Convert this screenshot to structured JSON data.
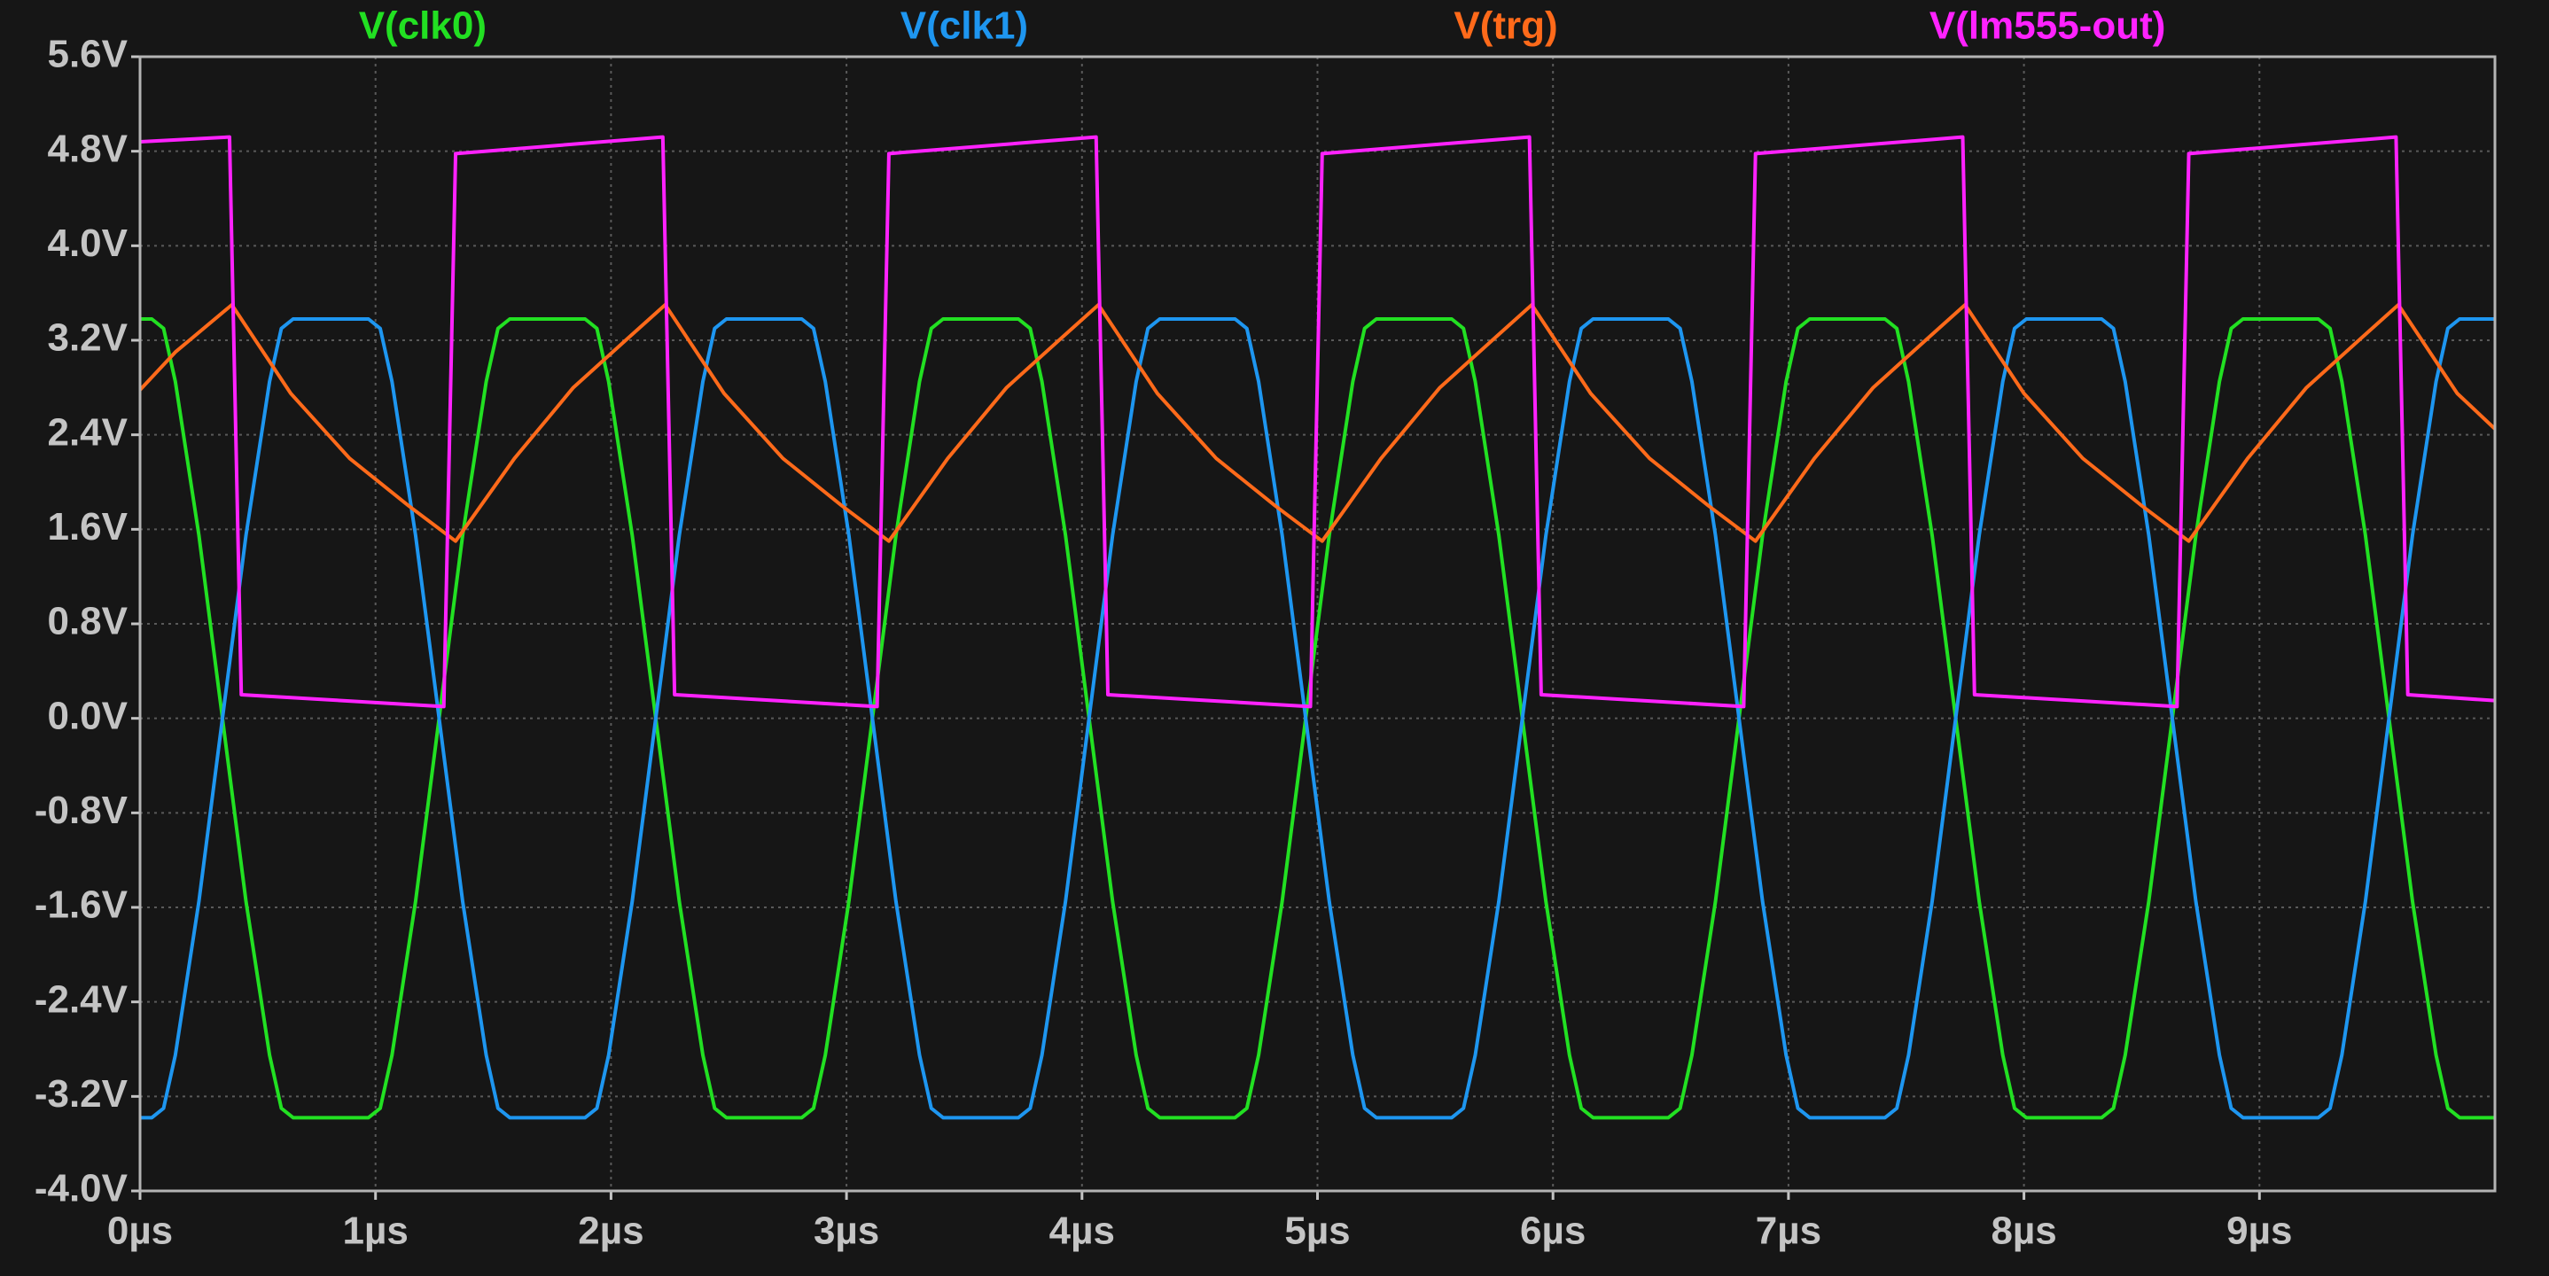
{
  "chart_data": {
    "type": "line",
    "xlim": [
      0,
      10
    ],
    "xticks": [
      {
        "value": 0,
        "label": "0µs"
      },
      {
        "value": 1,
        "label": "1µs"
      },
      {
        "value": 2,
        "label": "2µs"
      },
      {
        "value": 3,
        "label": "3µs"
      },
      {
        "value": 4,
        "label": "4µs"
      },
      {
        "value": 5,
        "label": "5µs"
      },
      {
        "value": 6,
        "label": "6µs"
      },
      {
        "value": 7,
        "label": "7µs"
      },
      {
        "value": 8,
        "label": "8µs"
      },
      {
        "value": 9,
        "label": "9µs"
      }
    ],
    "ylim": [
      -4,
      5.6
    ],
    "yticks": [
      {
        "value": -4,
        "label": "-4.0V"
      },
      {
        "value": -3.2,
        "label": "-3.2V"
      },
      {
        "value": -2.4,
        "label": "-2.4V"
      },
      {
        "value": -1.6,
        "label": "-1.6V"
      },
      {
        "value": -0.8,
        "label": "-0.8V"
      },
      {
        "value": 0,
        "label": "0.0V"
      },
      {
        "value": 0.8,
        "label": "0.8V"
      },
      {
        "value": 1.6,
        "label": "1.6V"
      },
      {
        "value": 2.4,
        "label": "2.4V"
      },
      {
        "value": 3.2,
        "label": "3.2V"
      },
      {
        "value": 4,
        "label": "4.0V"
      },
      {
        "value": 4.8,
        "label": "4.8V"
      },
      {
        "value": 5.6,
        "label": "5.6V"
      }
    ],
    "grid": true,
    "series": [
      {
        "name": "V(clk0)",
        "color": "#22e022",
        "x": [
          0,
          0.05,
          0.1,
          0.15,
          0.25,
          0.35,
          0.45,
          0.55,
          0.6,
          0.65,
          0.97,
          1.02,
          1.07,
          1.17,
          1.27,
          1.37,
          1.47,
          1.52,
          1.57,
          1.89,
          1.94,
          1.99,
          2.09,
          2.19,
          2.29,
          2.39,
          2.44,
          2.49,
          2.81,
          2.86,
          2.91,
          3.01,
          3.11,
          3.21,
          3.31,
          3.36,
          3.41,
          3.73,
          3.78,
          3.83,
          3.93,
          4.03,
          4.13,
          4.23,
          4.28,
          4.33,
          4.65,
          4.7,
          4.75,
          4.85,
          4.95,
          5.05,
          5.15,
          5.2,
          5.25,
          5.57,
          5.62,
          5.67,
          5.77,
          5.87,
          5.97,
          6.07,
          6.12,
          6.17,
          6.49,
          6.54,
          6.59,
          6.69,
          6.79,
          6.89,
          6.99,
          7.04,
          7.09,
          7.41,
          7.46,
          7.51,
          7.61,
          7.71,
          7.81,
          7.91,
          7.96,
          8.01,
          8.33,
          8.38,
          8.43,
          8.53,
          8.63,
          8.73,
          8.83,
          8.88,
          8.93,
          9.25,
          9.3,
          9.35,
          9.45,
          9.55,
          9.65,
          9.75,
          9.8,
          9.85,
          10
        ],
        "values": [
          3.38,
          3.38,
          3.3,
          2.85,
          1.55,
          0,
          -1.55,
          -2.85,
          -3.3,
          -3.38,
          -3.38,
          -3.3,
          -2.85,
          -1.55,
          0,
          1.55,
          2.85,
          3.3,
          3.38,
          3.38,
          3.3,
          2.85,
          1.55,
          0,
          -1.55,
          -2.85,
          -3.3,
          -3.38,
          -3.38,
          -3.3,
          -2.85,
          -1.55,
          0,
          1.55,
          2.85,
          3.3,
          3.38,
          3.38,
          3.3,
          2.85,
          1.55,
          0,
          -1.55,
          -2.85,
          -3.3,
          -3.38,
          -3.38,
          -3.3,
          -2.85,
          -1.55,
          0,
          1.55,
          2.85,
          3.3,
          3.38,
          3.38,
          3.3,
          2.85,
          1.55,
          0,
          -1.55,
          -2.85,
          -3.3,
          -3.38,
          -3.38,
          -3.3,
          -2.85,
          -1.55,
          0,
          1.55,
          2.85,
          3.3,
          3.38,
          3.38,
          3.3,
          2.85,
          1.55,
          0,
          -1.55,
          -2.85,
          -3.3,
          -3.38,
          -3.38,
          -3.3,
          -2.85,
          -1.55,
          0,
          1.55,
          2.85,
          3.3,
          3.38,
          3.38,
          3.3,
          2.85,
          1.55,
          0,
          -1.55,
          -2.85,
          -3.3,
          -3.38,
          -3.38
        ]
      },
      {
        "name": "V(clk1)",
        "color": "#1e96f0",
        "x": [
          0,
          0.05,
          0.1,
          0.15,
          0.25,
          0.35,
          0.45,
          0.55,
          0.6,
          0.65,
          0.97,
          1.02,
          1.07,
          1.17,
          1.27,
          1.37,
          1.47,
          1.52,
          1.57,
          1.89,
          1.94,
          1.99,
          2.09,
          2.19,
          2.29,
          2.39,
          2.44,
          2.49,
          2.81,
          2.86,
          2.91,
          3.01,
          3.11,
          3.21,
          3.31,
          3.36,
          3.41,
          3.73,
          3.78,
          3.83,
          3.93,
          4.03,
          4.13,
          4.23,
          4.28,
          4.33,
          4.65,
          4.7,
          4.75,
          4.85,
          4.95,
          5.05,
          5.15,
          5.2,
          5.25,
          5.57,
          5.62,
          5.67,
          5.77,
          5.87,
          5.97,
          6.07,
          6.12,
          6.17,
          6.49,
          6.54,
          6.59,
          6.69,
          6.79,
          6.89,
          6.99,
          7.04,
          7.09,
          7.41,
          7.46,
          7.51,
          7.61,
          7.71,
          7.81,
          7.91,
          7.96,
          8.01,
          8.33,
          8.38,
          8.43,
          8.53,
          8.63,
          8.73,
          8.83,
          8.88,
          8.93,
          9.25,
          9.3,
          9.35,
          9.45,
          9.55,
          9.65,
          9.75,
          9.8,
          9.85,
          10
        ],
        "values": [
          -3.38,
          -3.38,
          -3.3,
          -2.85,
          -1.55,
          0,
          1.55,
          2.85,
          3.3,
          3.38,
          3.38,
          3.3,
          2.85,
          1.55,
          0,
          -1.55,
          -2.85,
          -3.3,
          -3.38,
          -3.38,
          -3.3,
          -2.85,
          -1.55,
          0,
          1.55,
          2.85,
          3.3,
          3.38,
          3.38,
          3.3,
          2.85,
          1.55,
          0,
          -1.55,
          -2.85,
          -3.3,
          -3.38,
          -3.38,
          -3.3,
          -2.85,
          -1.55,
          0,
          1.55,
          2.85,
          3.3,
          3.38,
          3.38,
          3.3,
          2.85,
          1.55,
          0,
          -1.55,
          -2.85,
          -3.3,
          -3.38,
          -3.38,
          -3.3,
          -2.85,
          -1.55,
          0,
          1.55,
          2.85,
          3.3,
          3.38,
          3.38,
          3.3,
          2.85,
          1.55,
          0,
          -1.55,
          -2.85,
          -3.3,
          -3.38,
          -3.38,
          -3.3,
          -2.85,
          -1.55,
          0,
          1.55,
          2.85,
          3.3,
          3.38,
          3.38,
          3.3,
          2.85,
          1.55,
          0,
          -1.55,
          -2.85,
          -3.3,
          -3.38,
          -3.38,
          -3.3,
          -2.85,
          -1.55,
          0,
          1.55,
          2.85,
          3.3,
          3.38,
          3.38
        ]
      },
      {
        "name": "V(trg)",
        "color": "#ff6a1a",
        "x": [
          0,
          0.15,
          0.39,
          0.64,
          0.89,
          1.14,
          1.34,
          1.59,
          1.84,
          2.09,
          2.23,
          2.48,
          2.73,
          2.98,
          3.18,
          3.43,
          3.68,
          3.93,
          4.07,
          4.32,
          4.57,
          4.82,
          5.02,
          5.27,
          5.52,
          5.77,
          5.91,
          6.16,
          6.41,
          6.66,
          6.86,
          7.11,
          7.36,
          7.61,
          7.75,
          8.0,
          8.25,
          8.5,
          8.7,
          8.95,
          9.2,
          9.45,
          9.59,
          9.84,
          10
        ],
        "values": [
          2.78,
          3.1,
          3.5,
          2.75,
          2.2,
          1.8,
          1.5,
          2.2,
          2.8,
          3.25,
          3.5,
          2.75,
          2.2,
          1.8,
          1.5,
          2.2,
          2.8,
          3.25,
          3.5,
          2.75,
          2.2,
          1.8,
          1.5,
          2.2,
          2.8,
          3.25,
          3.5,
          2.75,
          2.2,
          1.8,
          1.5,
          2.2,
          2.8,
          3.25,
          3.5,
          2.75,
          2.2,
          1.8,
          1.5,
          2.2,
          2.8,
          3.25,
          3.5,
          2.75,
          2.45
        ]
      },
      {
        "name": "V(lm555-out)",
        "color": "#ff22ff",
        "x": [
          0,
          0.38,
          0.43,
          1.29,
          1.34,
          2.22,
          2.27,
          3.13,
          3.18,
          4.06,
          4.11,
          4.97,
          5.02,
          5.9,
          5.95,
          6.81,
          6.86,
          7.74,
          7.79,
          8.65,
          8.7,
          9.58,
          9.63,
          10
        ],
        "values": [
          4.88,
          4.92,
          0.2,
          0.1,
          4.78,
          4.92,
          0.2,
          0.1,
          4.78,
          4.92,
          0.2,
          0.1,
          4.78,
          4.92,
          0.2,
          0.1,
          4.78,
          4.92,
          0.2,
          0.1,
          4.78,
          4.92,
          0.2,
          0.15
        ]
      }
    ]
  }
}
